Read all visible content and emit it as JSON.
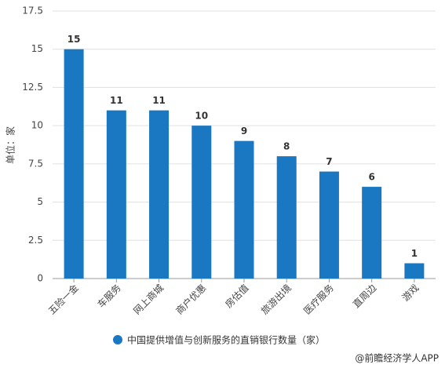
{
  "chart_data": {
    "type": "bar",
    "y_label": "单位：家",
    "categories": [
      "五险一金",
      "车服务",
      "网上商城",
      "商户优惠",
      "房估值",
      "旅游出境",
      "医疗服务",
      "直周边",
      "游戏"
    ],
    "series": [
      {
        "name": "中国提供增值与创新服务的直销银行数量（家）",
        "color": "#1a78c2",
        "values": [
          15,
          11,
          11,
          10,
          9,
          8,
          7,
          6,
          1
        ]
      }
    ],
    "ylim": [
      0,
      17.5
    ],
    "yticks": [
      0,
      2.5,
      5,
      7.5,
      10,
      12.5,
      15,
      17.5
    ],
    "grid": true,
    "legend": "bottom",
    "source": "@前瞻经济学人APP"
  }
}
